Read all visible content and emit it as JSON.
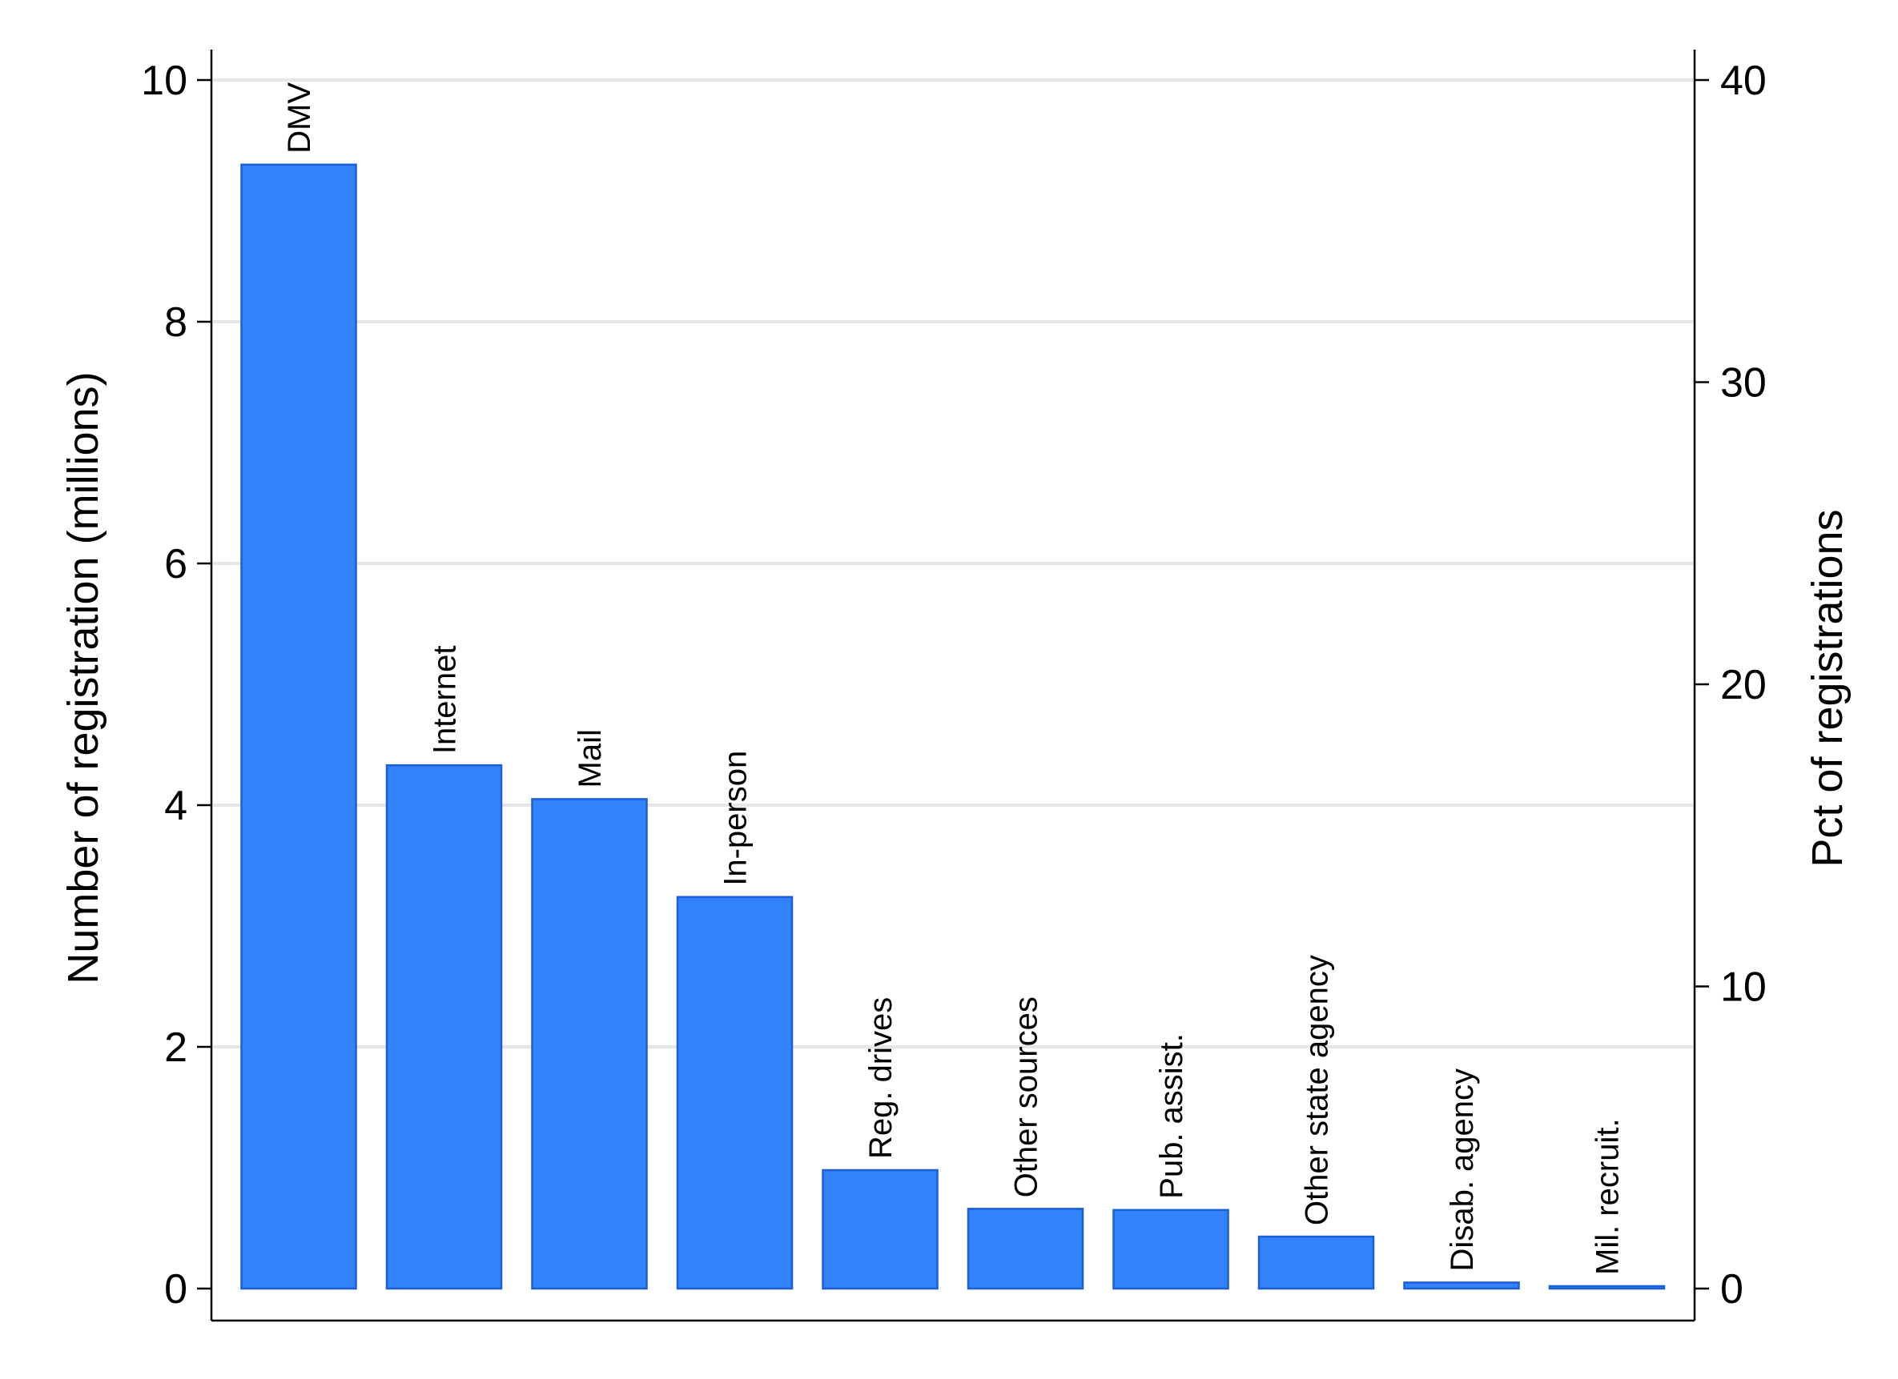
{
  "colors": {
    "bar_fill": "#3282fa",
    "bar_stroke": "#1a5ed8",
    "grid": "#e6e6e6",
    "axis": "#000000",
    "background": "#ffffff"
  },
  "chart_data": {
    "type": "bar",
    "categories": [
      "DMV",
      "Internet",
      "Mail",
      "In-person",
      "Reg. drives",
      "Other sources",
      "Pub. assist.",
      "Other state agency",
      "Disab. agency",
      "Mil. recruit."
    ],
    "values": [
      9.3,
      4.33,
      4.05,
      3.24,
      0.98,
      0.66,
      0.65,
      0.43,
      0.05,
      0.02
    ],
    "ylabel": "Number of registration (millions)",
    "y2label": "Pct of registrations",
    "ylim": [
      0,
      10
    ],
    "y2lim": [
      0,
      40
    ],
    "yticks": [
      "0",
      "2",
      "4",
      "6",
      "8",
      "10"
    ],
    "y2ticks": [
      "0",
      "10",
      "20",
      "30",
      "40"
    ],
    "grid": true,
    "legend": "none"
  }
}
